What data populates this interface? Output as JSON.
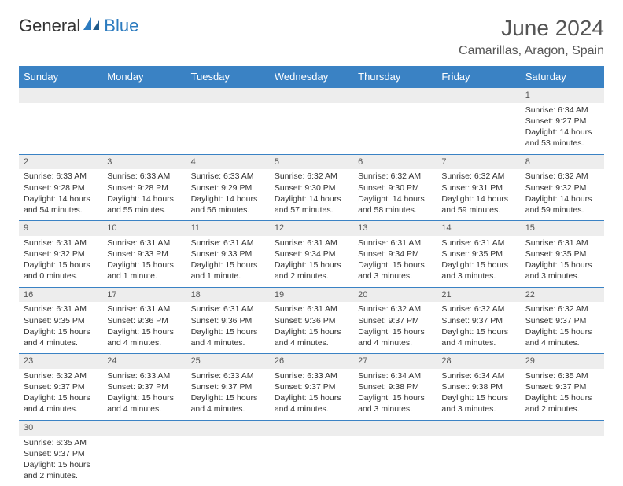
{
  "logo": {
    "general": "General",
    "blue": "Blue"
  },
  "title": "June 2024",
  "location": "Camarillas, Aragon, Spain",
  "weekdays": [
    "Sunday",
    "Monday",
    "Tuesday",
    "Wednesday",
    "Thursday",
    "Friday",
    "Saturday"
  ],
  "colors": {
    "header_bg": "#3a82c4",
    "header_fg": "#ffffff",
    "row_band": "#ededed",
    "row_border": "#3a82c4",
    "text": "#333333",
    "title": "#555555"
  },
  "weeks": [
    {
      "days": [
        {
          "n": "",
          "sr": "",
          "ss": "",
          "dl": ""
        },
        {
          "n": "",
          "sr": "",
          "ss": "",
          "dl": ""
        },
        {
          "n": "",
          "sr": "",
          "ss": "",
          "dl": ""
        },
        {
          "n": "",
          "sr": "",
          "ss": "",
          "dl": ""
        },
        {
          "n": "",
          "sr": "",
          "ss": "",
          "dl": ""
        },
        {
          "n": "",
          "sr": "",
          "ss": "",
          "dl": ""
        },
        {
          "n": "1",
          "sr": "Sunrise: 6:34 AM",
          "ss": "Sunset: 9:27 PM",
          "dl": "Daylight: 14 hours and 53 minutes."
        }
      ]
    },
    {
      "days": [
        {
          "n": "2",
          "sr": "Sunrise: 6:33 AM",
          "ss": "Sunset: 9:28 PM",
          "dl": "Daylight: 14 hours and 54 minutes."
        },
        {
          "n": "3",
          "sr": "Sunrise: 6:33 AM",
          "ss": "Sunset: 9:28 PM",
          "dl": "Daylight: 14 hours and 55 minutes."
        },
        {
          "n": "4",
          "sr": "Sunrise: 6:33 AM",
          "ss": "Sunset: 9:29 PM",
          "dl": "Daylight: 14 hours and 56 minutes."
        },
        {
          "n": "5",
          "sr": "Sunrise: 6:32 AM",
          "ss": "Sunset: 9:30 PM",
          "dl": "Daylight: 14 hours and 57 minutes."
        },
        {
          "n": "6",
          "sr": "Sunrise: 6:32 AM",
          "ss": "Sunset: 9:30 PM",
          "dl": "Daylight: 14 hours and 58 minutes."
        },
        {
          "n": "7",
          "sr": "Sunrise: 6:32 AM",
          "ss": "Sunset: 9:31 PM",
          "dl": "Daylight: 14 hours and 59 minutes."
        },
        {
          "n": "8",
          "sr": "Sunrise: 6:32 AM",
          "ss": "Sunset: 9:32 PM",
          "dl": "Daylight: 14 hours and 59 minutes."
        }
      ]
    },
    {
      "days": [
        {
          "n": "9",
          "sr": "Sunrise: 6:31 AM",
          "ss": "Sunset: 9:32 PM",
          "dl": "Daylight: 15 hours and 0 minutes."
        },
        {
          "n": "10",
          "sr": "Sunrise: 6:31 AM",
          "ss": "Sunset: 9:33 PM",
          "dl": "Daylight: 15 hours and 1 minute."
        },
        {
          "n": "11",
          "sr": "Sunrise: 6:31 AM",
          "ss": "Sunset: 9:33 PM",
          "dl": "Daylight: 15 hours and 1 minute."
        },
        {
          "n": "12",
          "sr": "Sunrise: 6:31 AM",
          "ss": "Sunset: 9:34 PM",
          "dl": "Daylight: 15 hours and 2 minutes."
        },
        {
          "n": "13",
          "sr": "Sunrise: 6:31 AM",
          "ss": "Sunset: 9:34 PM",
          "dl": "Daylight: 15 hours and 3 minutes."
        },
        {
          "n": "14",
          "sr": "Sunrise: 6:31 AM",
          "ss": "Sunset: 9:35 PM",
          "dl": "Daylight: 15 hours and 3 minutes."
        },
        {
          "n": "15",
          "sr": "Sunrise: 6:31 AM",
          "ss": "Sunset: 9:35 PM",
          "dl": "Daylight: 15 hours and 3 minutes."
        }
      ]
    },
    {
      "days": [
        {
          "n": "16",
          "sr": "Sunrise: 6:31 AM",
          "ss": "Sunset: 9:35 PM",
          "dl": "Daylight: 15 hours and 4 minutes."
        },
        {
          "n": "17",
          "sr": "Sunrise: 6:31 AM",
          "ss": "Sunset: 9:36 PM",
          "dl": "Daylight: 15 hours and 4 minutes."
        },
        {
          "n": "18",
          "sr": "Sunrise: 6:31 AM",
          "ss": "Sunset: 9:36 PM",
          "dl": "Daylight: 15 hours and 4 minutes."
        },
        {
          "n": "19",
          "sr": "Sunrise: 6:31 AM",
          "ss": "Sunset: 9:36 PM",
          "dl": "Daylight: 15 hours and 4 minutes."
        },
        {
          "n": "20",
          "sr": "Sunrise: 6:32 AM",
          "ss": "Sunset: 9:37 PM",
          "dl": "Daylight: 15 hours and 4 minutes."
        },
        {
          "n": "21",
          "sr": "Sunrise: 6:32 AM",
          "ss": "Sunset: 9:37 PM",
          "dl": "Daylight: 15 hours and 4 minutes."
        },
        {
          "n": "22",
          "sr": "Sunrise: 6:32 AM",
          "ss": "Sunset: 9:37 PM",
          "dl": "Daylight: 15 hours and 4 minutes."
        }
      ]
    },
    {
      "days": [
        {
          "n": "23",
          "sr": "Sunrise: 6:32 AM",
          "ss": "Sunset: 9:37 PM",
          "dl": "Daylight: 15 hours and 4 minutes."
        },
        {
          "n": "24",
          "sr": "Sunrise: 6:33 AM",
          "ss": "Sunset: 9:37 PM",
          "dl": "Daylight: 15 hours and 4 minutes."
        },
        {
          "n": "25",
          "sr": "Sunrise: 6:33 AM",
          "ss": "Sunset: 9:37 PM",
          "dl": "Daylight: 15 hours and 4 minutes."
        },
        {
          "n": "26",
          "sr": "Sunrise: 6:33 AM",
          "ss": "Sunset: 9:37 PM",
          "dl": "Daylight: 15 hours and 4 minutes."
        },
        {
          "n": "27",
          "sr": "Sunrise: 6:34 AM",
          "ss": "Sunset: 9:38 PM",
          "dl": "Daylight: 15 hours and 3 minutes."
        },
        {
          "n": "28",
          "sr": "Sunrise: 6:34 AM",
          "ss": "Sunset: 9:38 PM",
          "dl": "Daylight: 15 hours and 3 minutes."
        },
        {
          "n": "29",
          "sr": "Sunrise: 6:35 AM",
          "ss": "Sunset: 9:37 PM",
          "dl": "Daylight: 15 hours and 2 minutes."
        }
      ]
    },
    {
      "days": [
        {
          "n": "30",
          "sr": "Sunrise: 6:35 AM",
          "ss": "Sunset: 9:37 PM",
          "dl": "Daylight: 15 hours and 2 minutes."
        },
        {
          "n": "",
          "sr": "",
          "ss": "",
          "dl": ""
        },
        {
          "n": "",
          "sr": "",
          "ss": "",
          "dl": ""
        },
        {
          "n": "",
          "sr": "",
          "ss": "",
          "dl": ""
        },
        {
          "n": "",
          "sr": "",
          "ss": "",
          "dl": ""
        },
        {
          "n": "",
          "sr": "",
          "ss": "",
          "dl": ""
        },
        {
          "n": "",
          "sr": "",
          "ss": "",
          "dl": ""
        }
      ]
    }
  ]
}
